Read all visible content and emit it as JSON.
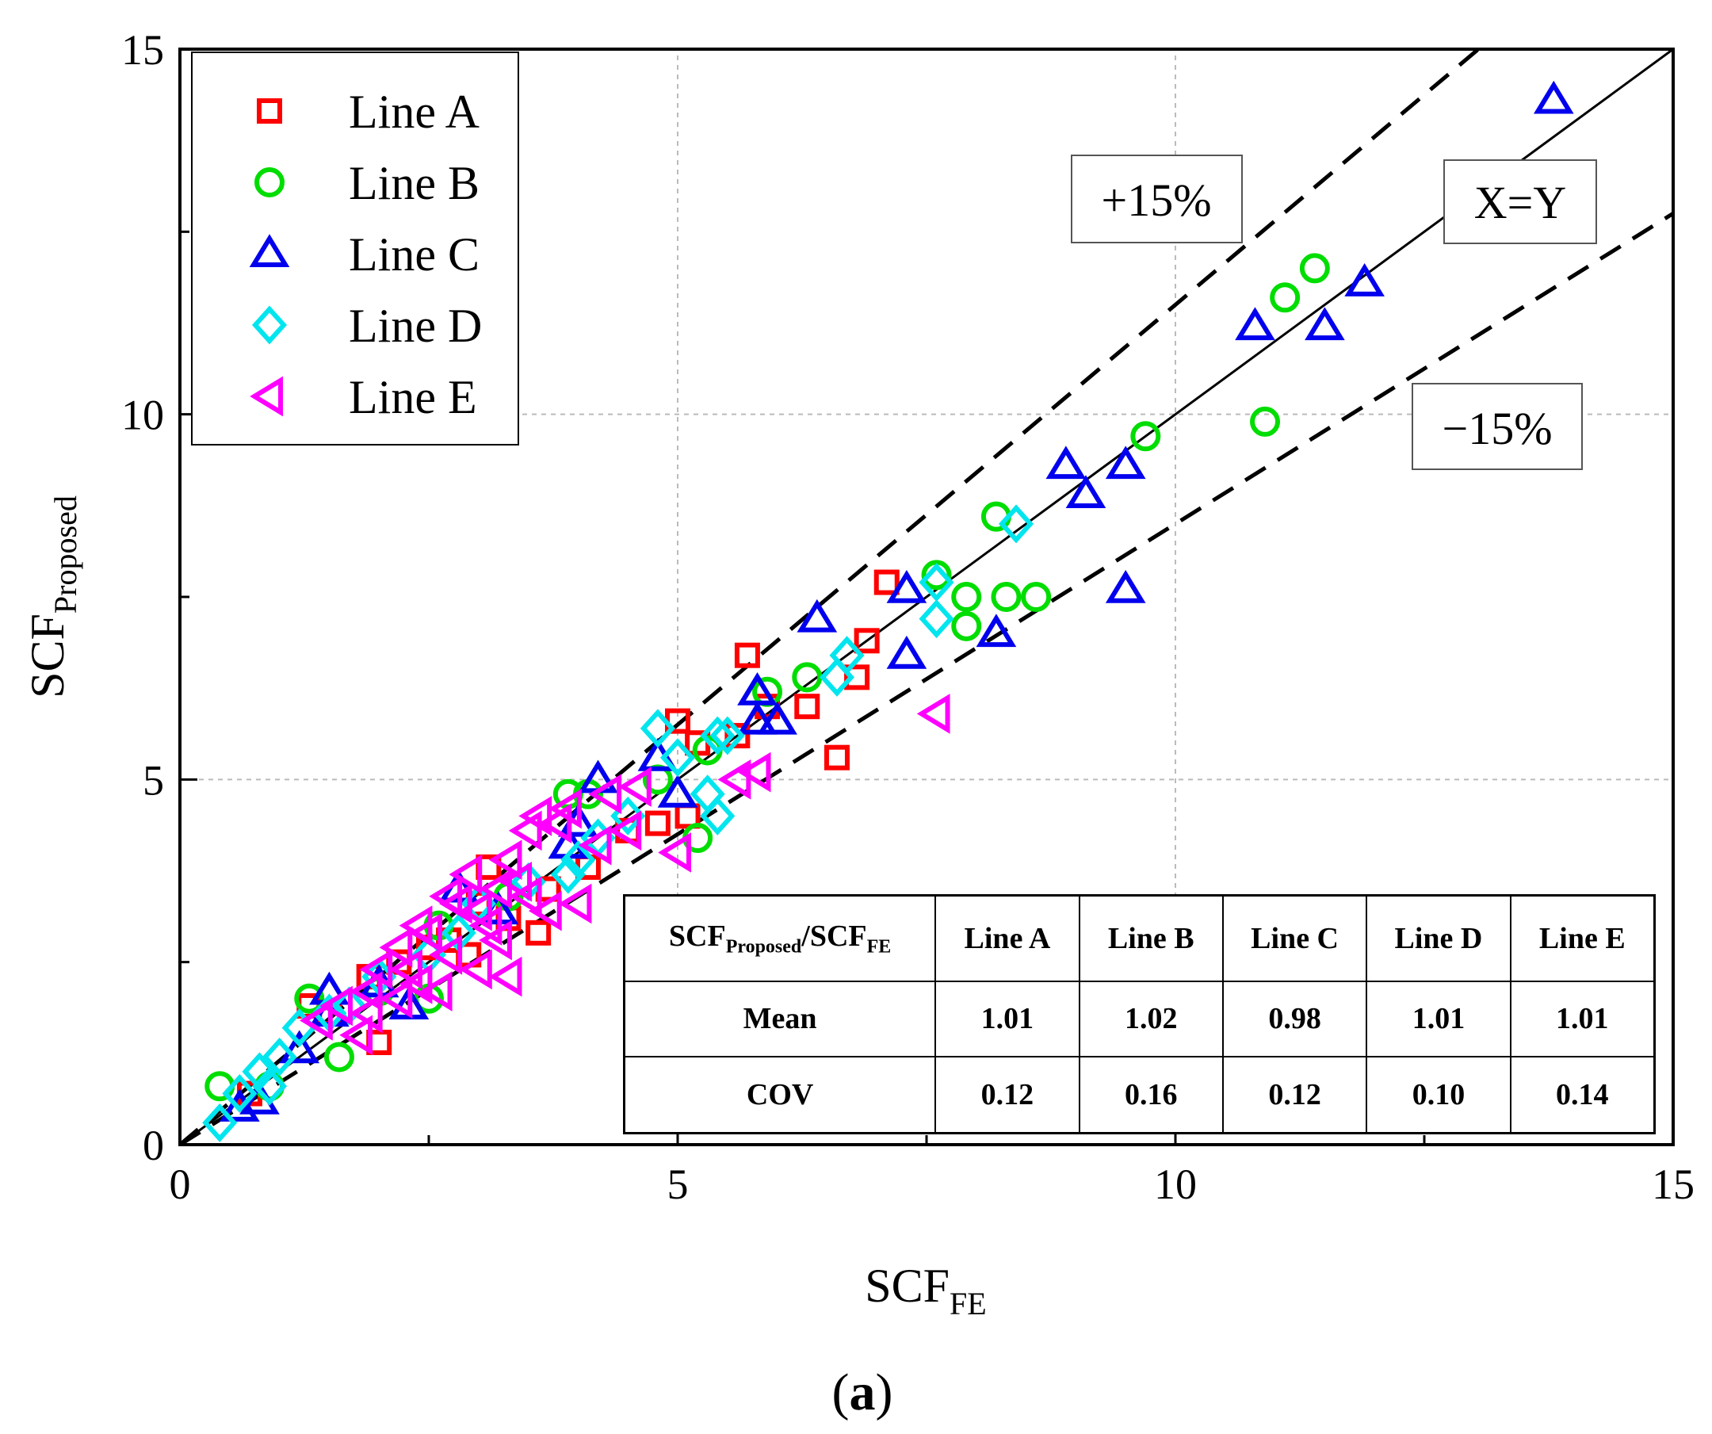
{
  "chart_data": {
    "type": "scatter",
    "xlabel": "SCF",
    "xlabel_sub": "FE",
    "ylabel": "SCF",
    "ylabel_sub": "Proposed",
    "xlim": [
      0,
      15
    ],
    "ylim": [
      0,
      15
    ],
    "major_ticks": [
      0,
      5,
      10,
      15
    ],
    "minor_step": 2.5,
    "grid": true,
    "caption_open": "(",
    "caption_letter": "a",
    "caption_close": ")",
    "reference_lines": [
      {
        "label": "X=Y",
        "slope": 1.0,
        "style": "solid"
      },
      {
        "label": "+15%",
        "slope": 1.15,
        "style": "dashed"
      },
      {
        "label": "−15%",
        "slope": 0.85,
        "style": "dashed"
      }
    ],
    "legend_position": "top-left",
    "series": [
      {
        "name": "Line A",
        "marker": "square",
        "color": "#ff0000",
        "points": [
          [
            7.1,
            7.7
          ],
          [
            5.7,
            6.7
          ],
          [
            6.9,
            6.9
          ],
          [
            6.8,
            6.4
          ],
          [
            6.3,
            6.0
          ],
          [
            6.6,
            5.3
          ],
          [
            5.0,
            5.8
          ],
          [
            5.6,
            5.6
          ],
          [
            5.2,
            5.5
          ],
          [
            5.9,
            6.0
          ],
          [
            4.8,
            4.4
          ],
          [
            5.1,
            4.5
          ],
          [
            3.1,
            3.8
          ],
          [
            3.0,
            3.3
          ],
          [
            3.6,
            2.9
          ],
          [
            2.5,
            2.7
          ],
          [
            2.2,
            2.5
          ],
          [
            2.0,
            1.4
          ],
          [
            1.5,
            1.8
          ],
          [
            1.3,
            1.9
          ],
          [
            0.7,
            0.7
          ],
          [
            2.9,
            2.6
          ],
          [
            3.7,
            3.5
          ],
          [
            4.1,
            3.8
          ],
          [
            1.9,
            2.3
          ],
          [
            3.3,
            3.1
          ],
          [
            4.5,
            4.3
          ],
          [
            2.7,
            2.8
          ]
        ]
      },
      {
        "name": "Line B",
        "marker": "circle",
        "color": "#00dd00",
        "points": [
          [
            11.4,
            12.0
          ],
          [
            11.1,
            11.6
          ],
          [
            10.9,
            9.9
          ],
          [
            9.7,
            9.7
          ],
          [
            8.2,
            8.6
          ],
          [
            7.6,
            7.8
          ],
          [
            7.9,
            7.5
          ],
          [
            8.3,
            7.5
          ],
          [
            8.6,
            7.5
          ],
          [
            7.9,
            7.1
          ],
          [
            6.3,
            6.4
          ],
          [
            5.9,
            6.2
          ],
          [
            5.3,
            5.4
          ],
          [
            5.2,
            4.2
          ],
          [
            4.1,
            4.8
          ],
          [
            3.9,
            4.8
          ],
          [
            2.6,
            3.0
          ],
          [
            2.5,
            2.0
          ],
          [
            1.6,
            1.2
          ],
          [
            1.3,
            2.0
          ],
          [
            0.4,
            0.8
          ],
          [
            3.3,
            3.4
          ],
          [
            2.0,
            2.1
          ],
          [
            4.8,
            5.0
          ],
          [
            0.9,
            0.8
          ]
        ]
      },
      {
        "name": "Line C",
        "marker": "triangle-up",
        "color": "#0000ee",
        "points": [
          [
            13.8,
            14.3
          ],
          [
            11.9,
            11.8
          ],
          [
            10.8,
            11.2
          ],
          [
            11.5,
            11.2
          ],
          [
            9.5,
            9.3
          ],
          [
            8.9,
            9.3
          ],
          [
            9.1,
            8.9
          ],
          [
            9.5,
            7.6
          ],
          [
            8.2,
            7.0
          ],
          [
            6.4,
            7.2
          ],
          [
            7.3,
            7.6
          ],
          [
            7.3,
            6.7
          ],
          [
            5.8,
            6.2
          ],
          [
            5.8,
            5.8
          ],
          [
            6.0,
            5.8
          ],
          [
            4.8,
            5.3
          ],
          [
            5.0,
            4.8
          ],
          [
            4.2,
            5.0
          ],
          [
            4.0,
            4.4
          ],
          [
            3.9,
            4.1
          ],
          [
            2.8,
            3.5
          ],
          [
            1.5,
            2.1
          ],
          [
            1.5,
            1.8
          ],
          [
            2.3,
            1.9
          ],
          [
            1.2,
            1.3
          ],
          [
            0.8,
            0.6
          ],
          [
            0.6,
            0.5
          ],
          [
            3.2,
            3.2
          ],
          [
            2.0,
            2.2
          ]
        ]
      },
      {
        "name": "Line D",
        "marker": "diamond",
        "color": "#00e5ee",
        "points": [
          [
            8.4,
            8.5
          ],
          [
            7.6,
            7.7
          ],
          [
            7.6,
            7.2
          ],
          [
            6.7,
            6.7
          ],
          [
            6.6,
            6.4
          ],
          [
            5.5,
            5.6
          ],
          [
            5.4,
            5.6
          ],
          [
            5.4,
            4.5
          ],
          [
            4.8,
            5.7
          ],
          [
            5.0,
            5.3
          ],
          [
            5.3,
            4.8
          ],
          [
            4.5,
            4.5
          ],
          [
            4.2,
            4.2
          ],
          [
            4.0,
            3.9
          ],
          [
            3.9,
            3.7
          ],
          [
            3.0,
            3.3
          ],
          [
            2.8,
            2.9
          ],
          [
            2.0,
            2.3
          ],
          [
            1.5,
            1.8
          ],
          [
            1.2,
            1.6
          ],
          [
            1.0,
            1.2
          ],
          [
            0.8,
            1.0
          ],
          [
            0.6,
            0.7
          ],
          [
            0.4,
            0.3
          ],
          [
            0.9,
            0.8
          ],
          [
            2.5,
            2.6
          ],
          [
            3.5,
            3.6
          ],
          [
            1.7,
            1.9
          ]
        ]
      },
      {
        "name": "Line E",
        "marker": "triangle-left",
        "color": "#ff00ff",
        "points": [
          [
            7.6,
            5.9
          ],
          [
            5.8,
            5.1
          ],
          [
            5.6,
            5.0
          ],
          [
            5.0,
            4.0
          ],
          [
            4.6,
            4.9
          ],
          [
            4.5,
            4.3
          ],
          [
            4.3,
            4.8
          ],
          [
            4.2,
            4.1
          ],
          [
            3.9,
            4.6
          ],
          [
            3.8,
            4.4
          ],
          [
            3.6,
            4.5
          ],
          [
            3.5,
            4.3
          ],
          [
            3.5,
            3.4
          ],
          [
            4.0,
            3.3
          ],
          [
            3.3,
            3.9
          ],
          [
            3.2,
            3.5
          ],
          [
            3.2,
            2.8
          ],
          [
            3.0,
            3.2
          ],
          [
            3.0,
            2.4
          ],
          [
            2.9,
            3.7
          ],
          [
            2.8,
            3.3
          ],
          [
            2.7,
            3.4
          ],
          [
            2.7,
            2.6
          ],
          [
            2.5,
            2.9
          ],
          [
            2.4,
            3.0
          ],
          [
            2.4,
            2.2
          ],
          [
            2.2,
            2.7
          ],
          [
            2.2,
            2.0
          ],
          [
            2.0,
            2.4
          ],
          [
            1.9,
            2.1
          ],
          [
            1.8,
            1.5
          ],
          [
            1.6,
            1.9
          ],
          [
            1.4,
            1.7
          ],
          [
            3.3,
            2.3
          ],
          [
            2.6,
            2.1
          ],
          [
            3.1,
            3.0
          ],
          [
            3.7,
            3.2
          ],
          [
            1.9,
            1.8
          ],
          [
            2.3,
            2.4
          ],
          [
            3.4,
            3.6
          ]
        ]
      }
    ],
    "table": {
      "header": [
        "SCF",
        "Proposed",
        "/SCF",
        "FE"
      ],
      "columns": [
        "Line A",
        "Line B",
        "Line C",
        "Line D",
        "Line E"
      ],
      "rows": [
        {
          "label": "Mean",
          "values": [
            "1.01",
            "1.02",
            "0.98",
            "1.01",
            "1.01"
          ]
        },
        {
          "label": "COV",
          "values": [
            "0.12",
            "0.16",
            "0.12",
            "0.10",
            "0.14"
          ]
        }
      ]
    }
  }
}
